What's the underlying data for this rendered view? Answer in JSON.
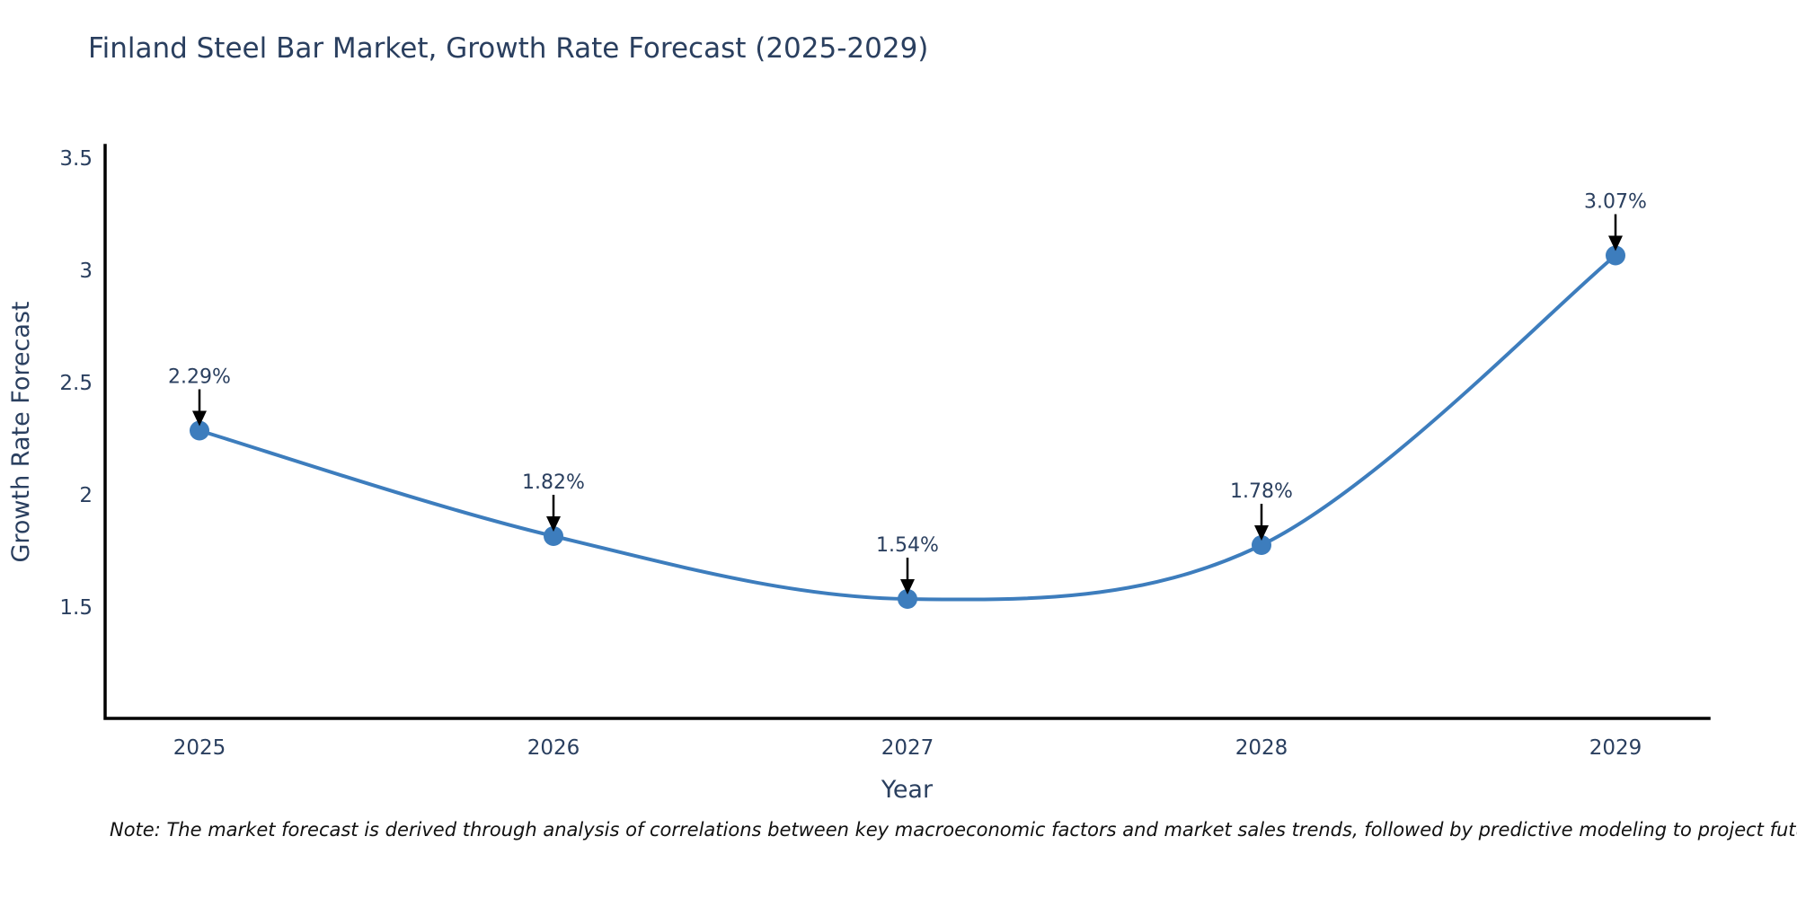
{
  "title": "Finland Steel Bar Market, Growth Rate Forecast (2025-2029)",
  "note": "Note: The market forecast is derived through analysis of correlations between key macroeconomic factors and market sales trends, followed by predictive modeling to project future sales",
  "colors": {
    "line": "#3d7dbd",
    "marker": "#3d7dbd",
    "text": "#2a3f5f",
    "axis": "#000000",
    "arrow": "#000000",
    "note_text": "#111111",
    "background": "#ffffff"
  },
  "chart_data": {
    "type": "line",
    "title": "Finland Steel Bar Market, Growth Rate Forecast (2025-2029)",
    "xlabel": "Year",
    "ylabel": "Growth Rate Forecast",
    "x": [
      2025,
      2026,
      2027,
      2028,
      2029
    ],
    "values": [
      2.29,
      1.82,
      1.54,
      1.78,
      3.07
    ],
    "point_labels": [
      "2.29%",
      "1.82%",
      "1.54%",
      "1.78%",
      "3.07%"
    ],
    "xtick_labels": [
      "2025",
      "2026",
      "2027",
      "2028",
      "2029"
    ],
    "yticks": [
      1.5,
      2,
      2.5,
      3,
      3.5
    ],
    "ytick_labels": [
      "1.5",
      "2",
      "2.5",
      "3",
      "3.5"
    ],
    "ylim": [
      1.0,
      3.56
    ],
    "grid": false,
    "legend": null,
    "line_shape": "spline",
    "marker": "circle",
    "annotation_arrows": "down"
  }
}
